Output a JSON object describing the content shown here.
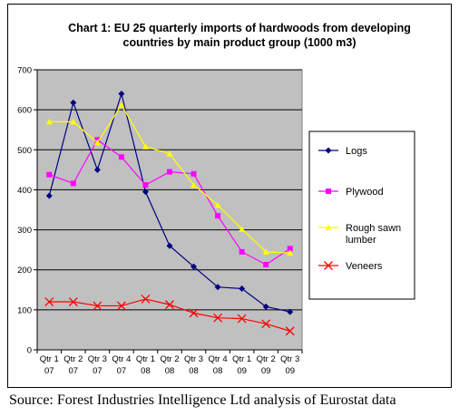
{
  "chart_data": {
    "type": "line",
    "title_line1": "Chart 1: EU 25 quarterly imports of hardwoods from developing",
    "title_line2": "countries by main product group (1000 m3)",
    "categories": [
      [
        "Qtr 1",
        "07"
      ],
      [
        "Qtr 2",
        "07"
      ],
      [
        "Qtr 3",
        "07"
      ],
      [
        "Qtr 4",
        "07"
      ],
      [
        "Qtr 1",
        "08"
      ],
      [
        "Qtr 2",
        "08"
      ],
      [
        "Qtr 3",
        "08"
      ],
      [
        "Qtr 4",
        "08"
      ],
      [
        "Qtr 1",
        "09"
      ],
      [
        "Qtr 2",
        "09"
      ],
      [
        "Qtr 3",
        "09"
      ]
    ],
    "ylim": [
      0,
      700
    ],
    "yticks": [
      0,
      100,
      200,
      300,
      400,
      500,
      600,
      700
    ],
    "grid": true,
    "legend": "right",
    "series": [
      {
        "name": "Logs",
        "color": "#000080",
        "marker": "diamond",
        "values": [
          385,
          618,
          450,
          640,
          395,
          260,
          208,
          157,
          153,
          108,
          95
        ]
      },
      {
        "name": "Plywood",
        "color": "#ff00ff",
        "marker": "square",
        "values": [
          438,
          416,
          525,
          482,
          412,
          445,
          440,
          335,
          245,
          213,
          253
        ]
      },
      {
        "name": "Rough sawn lumber",
        "legend_lines": [
          "Rough sawn",
          "lumber"
        ],
        "color": "#ffff00",
        "marker": "triangle",
        "values": [
          570,
          570,
          518,
          612,
          508,
          490,
          412,
          362,
          302,
          245,
          242
        ]
      },
      {
        "name": "Veneers",
        "color": "#ff0000",
        "marker": "x",
        "values": [
          120,
          120,
          110,
          110,
          127,
          113,
          92,
          80,
          78,
          65,
          47
        ]
      }
    ]
  },
  "source_text": "Source: Forest Industries Intelligence Ltd analysis of Eurostat data"
}
